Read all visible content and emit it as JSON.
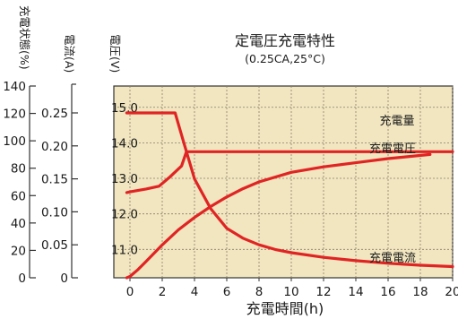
{
  "chart_data": {
    "type": "line",
    "title": "定電圧充電特性",
    "subtitle": "(0.25CA,25°C)",
    "xlabel": "充電時間(h)",
    "x_ticks": [
      "0",
      "2",
      "4",
      "6",
      "8",
      "10",
      "12",
      "14",
      "16",
      "18",
      "20"
    ],
    "xlim": [
      -1,
      20
    ],
    "colors": {
      "plot_bg": "#f1e6c0",
      "line": "#e02424"
    },
    "axes": {
      "state": {
        "label": "充電状態(%)",
        "ylim": [
          0,
          140
        ],
        "ticks": [
          "0",
          "20",
          "40",
          "60",
          "80",
          "100",
          "120",
          "140"
        ]
      },
      "current": {
        "label": "電流(A)",
        "ylim": [
          0,
          0.25
        ],
        "ticks": [
          "0",
          "0.05",
          "0.10",
          "0.15",
          "0.20",
          "0.25"
        ]
      },
      "voltage": {
        "label": "電圧(V)",
        "ylim": [
          10.2,
          15.6
        ],
        "ticks": [
          "11.0",
          "12.0",
          "13.0",
          "14.0",
          "15.0"
        ]
      }
    },
    "series": [
      {
        "name": "充電量",
        "axis": "state",
        "x": [
          -0.2,
          0,
          0.5,
          1,
          1.5,
          2,
          3,
          4,
          5,
          6,
          7,
          8,
          10,
          12,
          14,
          16,
          18.6
        ],
        "values": [
          0,
          1,
          6,
          12,
          18,
          24,
          35,
          44,
          52,
          59,
          65,
          70,
          77,
          81,
          84,
          87,
          90
        ]
      },
      {
        "name": "充電電圧",
        "axis": "voltage",
        "x": [
          -0.2,
          0,
          1,
          1.8,
          2.5,
          3.2,
          3.5,
          6,
          8,
          10,
          12,
          14,
          16,
          18,
          20
        ],
        "values": [
          12.6,
          12.62,
          12.7,
          12.78,
          13.05,
          13.35,
          13.75,
          13.75,
          13.75,
          13.75,
          13.75,
          13.75,
          13.75,
          13.75,
          13.75
        ]
      },
      {
        "name": "充電電流",
        "axis": "current",
        "x": [
          -0.2,
          0,
          1,
          2,
          2.8,
          3.3,
          4,
          5,
          6,
          7,
          8,
          9,
          10,
          12,
          14,
          16,
          18,
          20
        ],
        "values": [
          0.25,
          0.25,
          0.25,
          0.25,
          0.25,
          0.208,
          0.15,
          0.105,
          0.075,
          0.06,
          0.05,
          0.043,
          0.038,
          0.031,
          0.026,
          0.022,
          0.019,
          0.017
        ]
      }
    ]
  }
}
